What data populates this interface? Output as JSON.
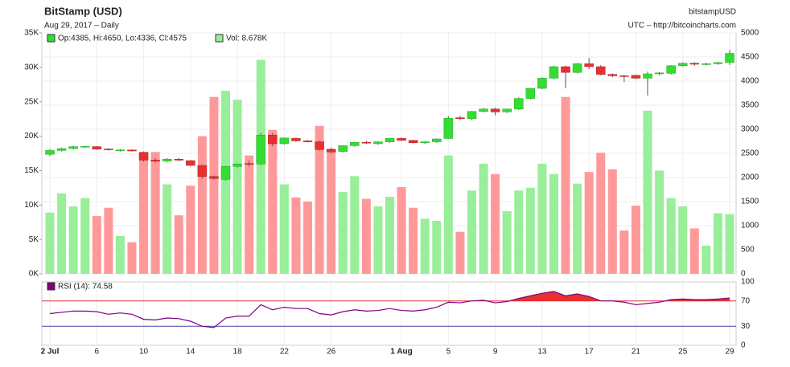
{
  "chart_data": {
    "type": "candlestick",
    "title": "BitStamp (USD)",
    "subtitle": "Aug 29, 2017 – Daily",
    "source_name": "bitstampUSD",
    "source_url": "UTC – http://bitcoincharts.com",
    "ohlc_label": "Op:4385, Hi:4650, Lo:4336, Cl:4575",
    "volume_label": "Vol: 8.678K",
    "rsi_label": "RSI (14): 74.58",
    "categories": [
      "2 Jul",
      null,
      null,
      null,
      "6",
      null,
      null,
      null,
      "10",
      null,
      null,
      null,
      "14",
      null,
      null,
      null,
      "18",
      null,
      null,
      null,
      "22",
      null,
      null,
      null,
      "26",
      null,
      null,
      null,
      null,
      null,
      "1 Aug",
      null,
      null,
      null,
      "5",
      null,
      null,
      null,
      "9",
      null,
      null,
      null,
      "13",
      null,
      null,
      null,
      "17",
      null,
      null,
      null,
      "21",
      null,
      null,
      null,
      "25",
      null,
      null,
      null,
      "29"
    ],
    "bold_categories": [
      "2 Jul",
      "1 Aug"
    ],
    "open": [
      2480,
      2560,
      2600,
      2630,
      2640,
      2590,
      2560,
      2570,
      2520,
      2360,
      2340,
      2380,
      2350,
      2250,
      2020,
      1960,
      2230,
      2290,
      2280,
      2880,
      2700,
      2810,
      2760,
      2740,
      2580,
      2540,
      2660,
      2730,
      2700,
      2740,
      2810,
      2770,
      2720,
      2740,
      2810,
      3240,
      3220,
      3370,
      3420,
      3360,
      3420,
      3640,
      3850,
      4060,
      4300,
      4180,
      4360,
      4300,
      4140,
      4110,
      4120,
      4060,
      4150,
      4160,
      4320,
      4370,
      4350,
      4360,
      4385
    ],
    "high": [
      2590,
      2620,
      2660,
      2660,
      2650,
      2610,
      2590,
      2580,
      2540,
      2400,
      2400,
      2400,
      2360,
      2260,
      2040,
      2240,
      2290,
      2350,
      2920,
      2920,
      2830,
      2830,
      2780,
      2760,
      2620,
      2670,
      2740,
      2760,
      2750,
      2820,
      2830,
      2780,
      2750,
      2810,
      3270,
      3280,
      3380,
      3440,
      3450,
      3430,
      3660,
      3860,
      4080,
      4320,
      4320,
      4380,
      4480,
      4330,
      4160,
      4130,
      4130,
      4200,
      4190,
      4330,
      4390,
      4390,
      4380,
      4400,
      4650
    ],
    "low": [
      2450,
      2540,
      2580,
      2620,
      2570,
      2560,
      2540,
      2540,
      2330,
      2310,
      2320,
      2340,
      2240,
      1980,
      1960,
      1940,
      2210,
      2230,
      2260,
      2650,
      2680,
      2740,
      2730,
      2560,
      2500,
      2520,
      2640,
      2700,
      2680,
      2720,
      2760,
      2710,
      2700,
      2720,
      2800,
      3190,
      3200,
      3350,
      3290,
      3340,
      3400,
      3620,
      3830,
      4040,
      3850,
      4160,
      4250,
      4120,
      4080,
      3980,
      4040,
      3700,
      4120,
      4140,
      4300,
      4320,
      4330,
      4340,
      4336
    ],
    "close": [
      2560,
      2600,
      2640,
      2645,
      2590,
      2580,
      2570,
      2550,
      2360,
      2340,
      2380,
      2360,
      2250,
      2020,
      1980,
      2230,
      2280,
      2280,
      2880,
      2700,
      2820,
      2760,
      2740,
      2580,
      2530,
      2660,
      2730,
      2720,
      2740,
      2810,
      2770,
      2720,
      2740,
      2800,
      3230,
      3220,
      3370,
      3420,
      3360,
      3420,
      3640,
      3850,
      4060,
      4300,
      4180,
      4360,
      4300,
      4140,
      4110,
      4100,
      4060,
      4150,
      4170,
      4320,
      4370,
      4350,
      4360,
      4385,
      4575
    ],
    "up_color": "#33dd33",
    "down_color": "#e83030",
    "volume": [
      8900,
      11700,
      9800,
      11000,
      8400,
      9600,
      5500,
      4600,
      17700,
      17700,
      13000,
      8500,
      12800,
      20000,
      25700,
      26600,
      25300,
      17200,
      31100,
      20900,
      13000,
      11100,
      10500,
      21500,
      18200,
      11900,
      14200,
      10900,
      9800,
      11200,
      12600,
      9600,
      8000,
      7700,
      17200,
      6100,
      12100,
      16000,
      14500,
      9100,
      12100,
      12500,
      16000,
      14500,
      25700,
      13100,
      14800,
      17600,
      15200,
      6300,
      9900,
      23700,
      15000,
      11000,
      9800,
      6600,
      4100,
      8800,
      8678
    ],
    "volume_up_color": "#99ee99",
    "volume_down_color": "#ff9999",
    "ylim": [
      0,
      35000
    ],
    "yticks": [
      {
        "value": 0,
        "label": "0K"
      },
      {
        "value": 5000,
        "label": "5K"
      },
      {
        "value": 10000,
        "label": "10K"
      },
      {
        "value": 15000,
        "label": "15K"
      },
      {
        "value": 20000,
        "label": "20K"
      },
      {
        "value": 25000,
        "label": "25K"
      },
      {
        "value": 30000,
        "label": "30K"
      },
      {
        "value": 35000,
        "label": "35K"
      }
    ],
    "y2lim": [
      0,
      5000
    ],
    "y2ticks": [
      0,
      500,
      1000,
      1500,
      2000,
      2500,
      3000,
      3500,
      4000,
      4500,
      5000
    ],
    "rsi": [
      50,
      52,
      54,
      54,
      53,
      49,
      51,
      49,
      41,
      40,
      43,
      42,
      38,
      30,
      28,
      43,
      46,
      46,
      64,
      56,
      60,
      58,
      58,
      50,
      48,
      53,
      56,
      54,
      55,
      58,
      55,
      54,
      56,
      60,
      68,
      67,
      70,
      71,
      67,
      69,
      74,
      78,
      82,
      85,
      78,
      81,
      77,
      70,
      70,
      68,
      64,
      66,
      68,
      72,
      73,
      72,
      72,
      73,
      74.58
    ],
    "rsi_color": "#800080",
    "rsi_ylim": [
      0,
      100
    ],
    "rsi_yticks": [
      0,
      30,
      70,
      100
    ],
    "rsi_levels": [
      30,
      70
    ],
    "grid": true
  }
}
